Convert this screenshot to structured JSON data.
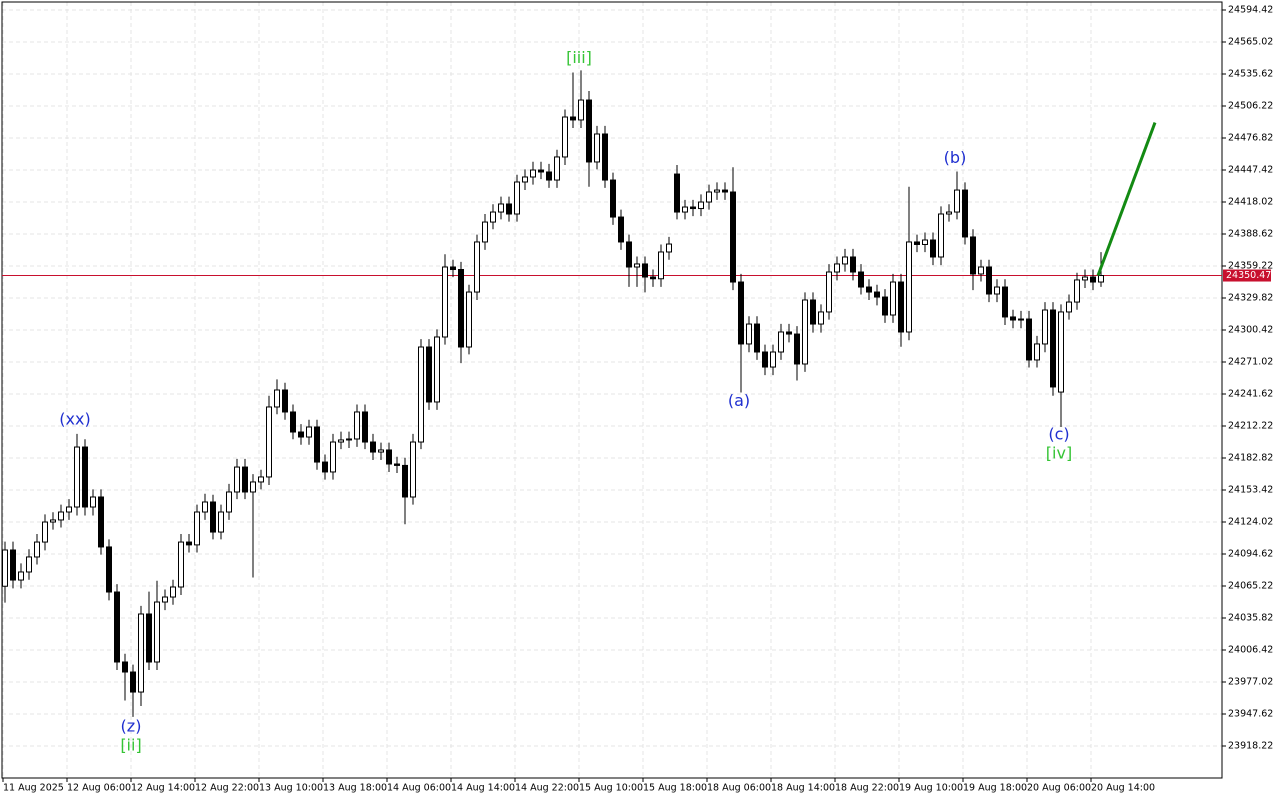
{
  "chart_data": {
    "type": "candlestick",
    "categories": [
      "11 Aug 2025",
      null,
      null,
      null,
      null,
      null,
      null,
      null,
      "12 Aug 06:00",
      null,
      null,
      null,
      null,
      null,
      null,
      null,
      "12 Aug 14:00",
      null,
      null,
      null,
      null,
      null,
      null,
      null,
      "12 Aug 22:00",
      null,
      null,
      null,
      null,
      null,
      null,
      null,
      "13 Aug 10:00",
      null,
      null,
      null,
      null,
      null,
      null,
      null,
      "13 Aug 18:00",
      null,
      null,
      null,
      null,
      null,
      null,
      null,
      "14 Aug 06:00",
      null,
      null,
      null,
      null,
      null,
      null,
      null,
      "14 Aug 14:00",
      null,
      null,
      null,
      null,
      null,
      null,
      null,
      "14 Aug 22:00",
      null,
      null,
      null,
      null,
      null,
      null,
      null,
      "15 Aug 10:00",
      null,
      null,
      null,
      null,
      null,
      null,
      null,
      "15 Aug 18:00",
      null,
      null,
      null,
      null,
      null,
      null,
      null,
      "18 Aug 06:00",
      null,
      null,
      null,
      null,
      null,
      null,
      null,
      "18 Aug 14:00",
      null,
      null,
      null,
      null,
      null,
      null,
      null,
      "18 Aug 22:00",
      null,
      null,
      null,
      null,
      null,
      null,
      null,
      "19 Aug 10:00",
      null,
      null,
      null,
      null,
      null,
      null,
      null,
      "19 Aug 18:00",
      null,
      null,
      null,
      null,
      null,
      null,
      null,
      "20 Aug 06:00",
      null,
      null,
      null,
      null,
      null,
      null,
      null,
      "20 Aug 14:00",
      null
    ],
    "open": [
      24065.0,
      24098.3,
      24070.7,
      24078.1,
      24091.9,
      24105.6,
      24124.0,
      24125.9,
      24133.2,
      24137.8,
      24192.9,
      24137.8,
      24147.0,
      24101.1,
      24059.7,
      23995.4,
      23986.2,
      23967.8,
      24039.5,
      23995.4,
      24050.5,
      24055.1,
      24064.3,
      24105.6,
      24103.0,
      24133.2,
      24142.4,
      24114.8,
      24133.2,
      24151.6,
      24174.5,
      24151.6,
      24160.8,
      24165.4,
      24229.7,
      24245.3,
      24225.1,
      24206.7,
      24202.1,
      24211.3,
      24179.1,
      24170.0,
      24197.5,
      24199.4,
      24200.3,
      24225.1,
      24197.5,
      24188.3,
      24190.2,
      24177.3,
      24176.0,
      24147.0,
      24197.5,
      24284.8,
      24234.3,
      24294.0,
      24358.3,
      24356.0,
      24284.8,
      24335.3,
      24381.3,
      24399.6,
      24408.8,
      24416.2,
      24407.0,
      24436.4,
      24441.0,
      24447.4,
      24445.6,
      24438.2,
      24459.4,
      24496.1,
      24493.4,
      24511.7,
      24454.8,
      24480.5,
      24438.2,
      24404.2,
      24381.3,
      24358.3,
      24361.1,
      24349.1,
      24347.5,
      24372.1,
      24443.7,
      24408.8,
      24413.4,
      24412.0,
      24418.0,
      24427.2,
      24429.0,
      24427.2,
      24344.5,
      24287.6,
      24305.9,
      24280.2,
      24266.4,
      24280.2,
      24298.6,
      24296.7,
      24269.2,
      24328.0,
      24305.9,
      24317.0,
      24353.7,
      24361.1,
      24367.5,
      24353.7,
      24339.9,
      24335.3,
      24330.7,
      24314.2,
      24344.5,
      24298.6,
      24381.3,
      24379.0,
      24383.1,
      24367.5,
      24407.0,
      24408.8,
      24429.0,
      24385.9,
      24351.9,
      24358.3,
      24333.5,
      24339.9,
      24312.4,
      24309.6,
      24310.5,
      24272.9,
      24287.6,
      24318.8,
      24243.4,
      24317.0,
      24326.1,
      24346.4,
      24349.1,
      24344.5
    ],
    "high": [
      24106,
      24106,
      24086,
      24099,
      24113,
      24131,
      24133,
      24140,
      24145,
      24205,
      24200,
      24154,
      24154,
      24108,
      24067,
      24003,
      23993,
      24047,
      24060,
      24070,
      24062,
      24071,
      24113,
      24113,
      24140,
      24150,
      24149,
      24140,
      24159,
      24182,
      24182,
      24168,
      24172,
      24240,
      24255,
      24252,
      24232,
      24214,
      24218,
      24218,
      24186,
      24205,
      24207,
      24207,
      24232,
      24232,
      24205,
      24197,
      24197,
      24184,
      24183,
      24205,
      24292,
      24292,
      24301,
      24370,
      24365,
      24363,
      24342,
      24388,
      24407,
      24416,
      24423,
      24423,
      24443,
      24448,
      24455,
      24455,
      24453,
      24466,
      24503,
      24537,
      24539,
      24520,
      24488,
      24488,
      24445,
      24411,
      24388,
      24368,
      24368,
      24356,
      24379,
      24386,
      24452,
      24420,
      24420,
      24425,
      24434,
      24436,
      24436,
      24450,
      24352,
      24313,
      24313,
      24287,
      24287,
      24306,
      24306,
      24304,
      24335,
      24335,
      24324,
      24361,
      24368,
      24375,
      24375,
      24361,
      24347,
      24342,
      24338,
      24352,
      24352,
      24432,
      24388,
      24390,
      24390,
      24414,
      24416,
      24446,
      24436,
      24393,
      24365,
      24365,
      24347,
      24347,
      24319,
      24318,
      24318,
      24295,
      24326,
      24326,
      24324,
      24333,
      24353,
      24356,
      24356,
      24372
    ],
    "low": [
      24050,
      24063,
      24063,
      24071,
      24085,
      24098,
      24117,
      24119,
      24126,
      24130,
      24130,
      24130,
      24094,
      24052,
      23988,
      23960,
      23945,
      23955,
      23988,
      23988,
      24043,
      24048,
      24057,
      24096,
      24096,
      24126,
      24108,
      24108,
      24126,
      24145,
      24145,
      24073,
      24154,
      24158,
      24223,
      24218,
      24200,
      24195,
      24195,
      24172,
      24163,
      24163,
      24191,
      24192,
      24193,
      24191,
      24181,
      24181,
      24170,
      24169,
      24122,
      24140,
      24191,
      24227,
      24227,
      24287,
      24349,
      24270,
      24278,
      24328,
      24374,
      24393,
      24402,
      24400,
      24400,
      24429,
      24434,
      24439,
      24431,
      24431,
      24452,
      24486,
      24486,
      24432,
      24448,
      24431,
      24397,
      24374,
      24340,
      24340,
      24335,
      24340,
      24340,
      24365,
      24402,
      24402,
      24405,
      24405,
      24411,
      24420,
      24420,
      24337,
      24243,
      24280,
      24273,
      24259,
      24259,
      24273,
      24289,
      24254,
      24262,
      24298,
      24298,
      24310,
      24346,
      24354,
      24346,
      24333,
      24328,
      24323,
      24307,
      24307,
      24285,
      24291,
      24372,
      24372,
      24360,
      24360,
      24400,
      24402,
      24379,
      24337,
      24345,
      24326,
      24326,
      24305,
      24302,
      24302,
      24266,
      24266,
      24280,
      24240,
      24211.3,
      24310,
      24319,
      24339,
      24337,
      24340
    ],
    "close": [
      24098.3,
      24070.7,
      24078.1,
      24091.9,
      24105.6,
      24124.0,
      24125.9,
      24133.2,
      24137.8,
      24192.9,
      24137.8,
      24147.0,
      24101.1,
      24059.7,
      23995.4,
      23986.2,
      23967.8,
      24039.5,
      23995.4,
      24050.5,
      24055.1,
      24064.3,
      24105.6,
      24103.0,
      24133.2,
      24142.4,
      24114.8,
      24133.2,
      24151.6,
      24174.5,
      24151.6,
      24160.8,
      24165.4,
      24229.7,
      24245.3,
      24225.1,
      24206.7,
      24202.1,
      24211.3,
      24179.1,
      24170.0,
      24197.5,
      24199.4,
      24200.3,
      24225.1,
      24197.5,
      24188.3,
      24190.2,
      24177.3,
      24176.0,
      24147.0,
      24197.5,
      24284.8,
      24234.3,
      24294.0,
      24358.3,
      24356.0,
      24284.8,
      24335.3,
      24381.3,
      24399.6,
      24408.8,
      24416.2,
      24407.0,
      24436.4,
      24441.0,
      24447.4,
      24445.6,
      24438.2,
      24459.4,
      24496.1,
      24493.4,
      24511.7,
      24454.8,
      24480.5,
      24438.2,
      24404.2,
      24381.3,
      24358.3,
      24361.1,
      24349.1,
      24347.5,
      24372.1,
      24379.4,
      24408.8,
      24413.4,
      24412.0,
      24418.0,
      24427.2,
      24429.0,
      24427.2,
      24344.5,
      24287.6,
      24305.9,
      24280.2,
      24266.4,
      24280.2,
      24298.6,
      24296.7,
      24269.2,
      24328.0,
      24305.9,
      24317.0,
      24353.7,
      24361.1,
      24367.5,
      24353.7,
      24339.9,
      24335.3,
      24330.7,
      24314.2,
      24344.5,
      24298.6,
      24381.3,
      24379.0,
      24383.1,
      24367.5,
      24407.0,
      24408.8,
      24429.0,
      24385.9,
      24351.9,
      24358.3,
      24333.5,
      24339.9,
      24312.4,
      24309.6,
      24310.5,
      24272.9,
      24287.6,
      24318.8,
      24248.1,
      24317.0,
      24326.1,
      24346.4,
      24349.1,
      24344.5,
      24350.47
    ],
    "ylim": [
      23888.82,
      24601.77
    ],
    "yticks": [
      24594.42,
      24565.02,
      24535.62,
      24506.22,
      24476.82,
      24447.42,
      24418.02,
      24388.62,
      24359.22,
      24329.82,
      24300.42,
      24271.02,
      24241.62,
      24212.22,
      24182.82,
      24153.42,
      24124.02,
      24094.62,
      24065.22,
      24035.82,
      24006.42,
      23977.02,
      23947.62,
      23918.22
    ],
    "grid": true,
    "up_color": "#ffffff",
    "down_color": "#000000",
    "current_price": {
      "value": 24350.47,
      "color": "#c8102e"
    },
    "forecast": {
      "color": "#138a13",
      "values": [
        24350.47,
        24491.0
      ]
    },
    "annotations": [
      {
        "text": "(xx)",
        "color": "#1f2fd0"
      },
      {
        "text": "(z)",
        "color": "#1f2fd0"
      },
      {
        "text": "[ii]",
        "color": "#35c435"
      },
      {
        "text": "[iii]",
        "color": "#35c435"
      },
      {
        "text": "(a)",
        "color": "#1f2fd0"
      },
      {
        "text": "(b)",
        "color": "#1f2fd0"
      },
      {
        "text": "(c)",
        "color": "#1f2fd0"
      },
      {
        "text": "[iv]",
        "color": "#35c435"
      }
    ]
  }
}
